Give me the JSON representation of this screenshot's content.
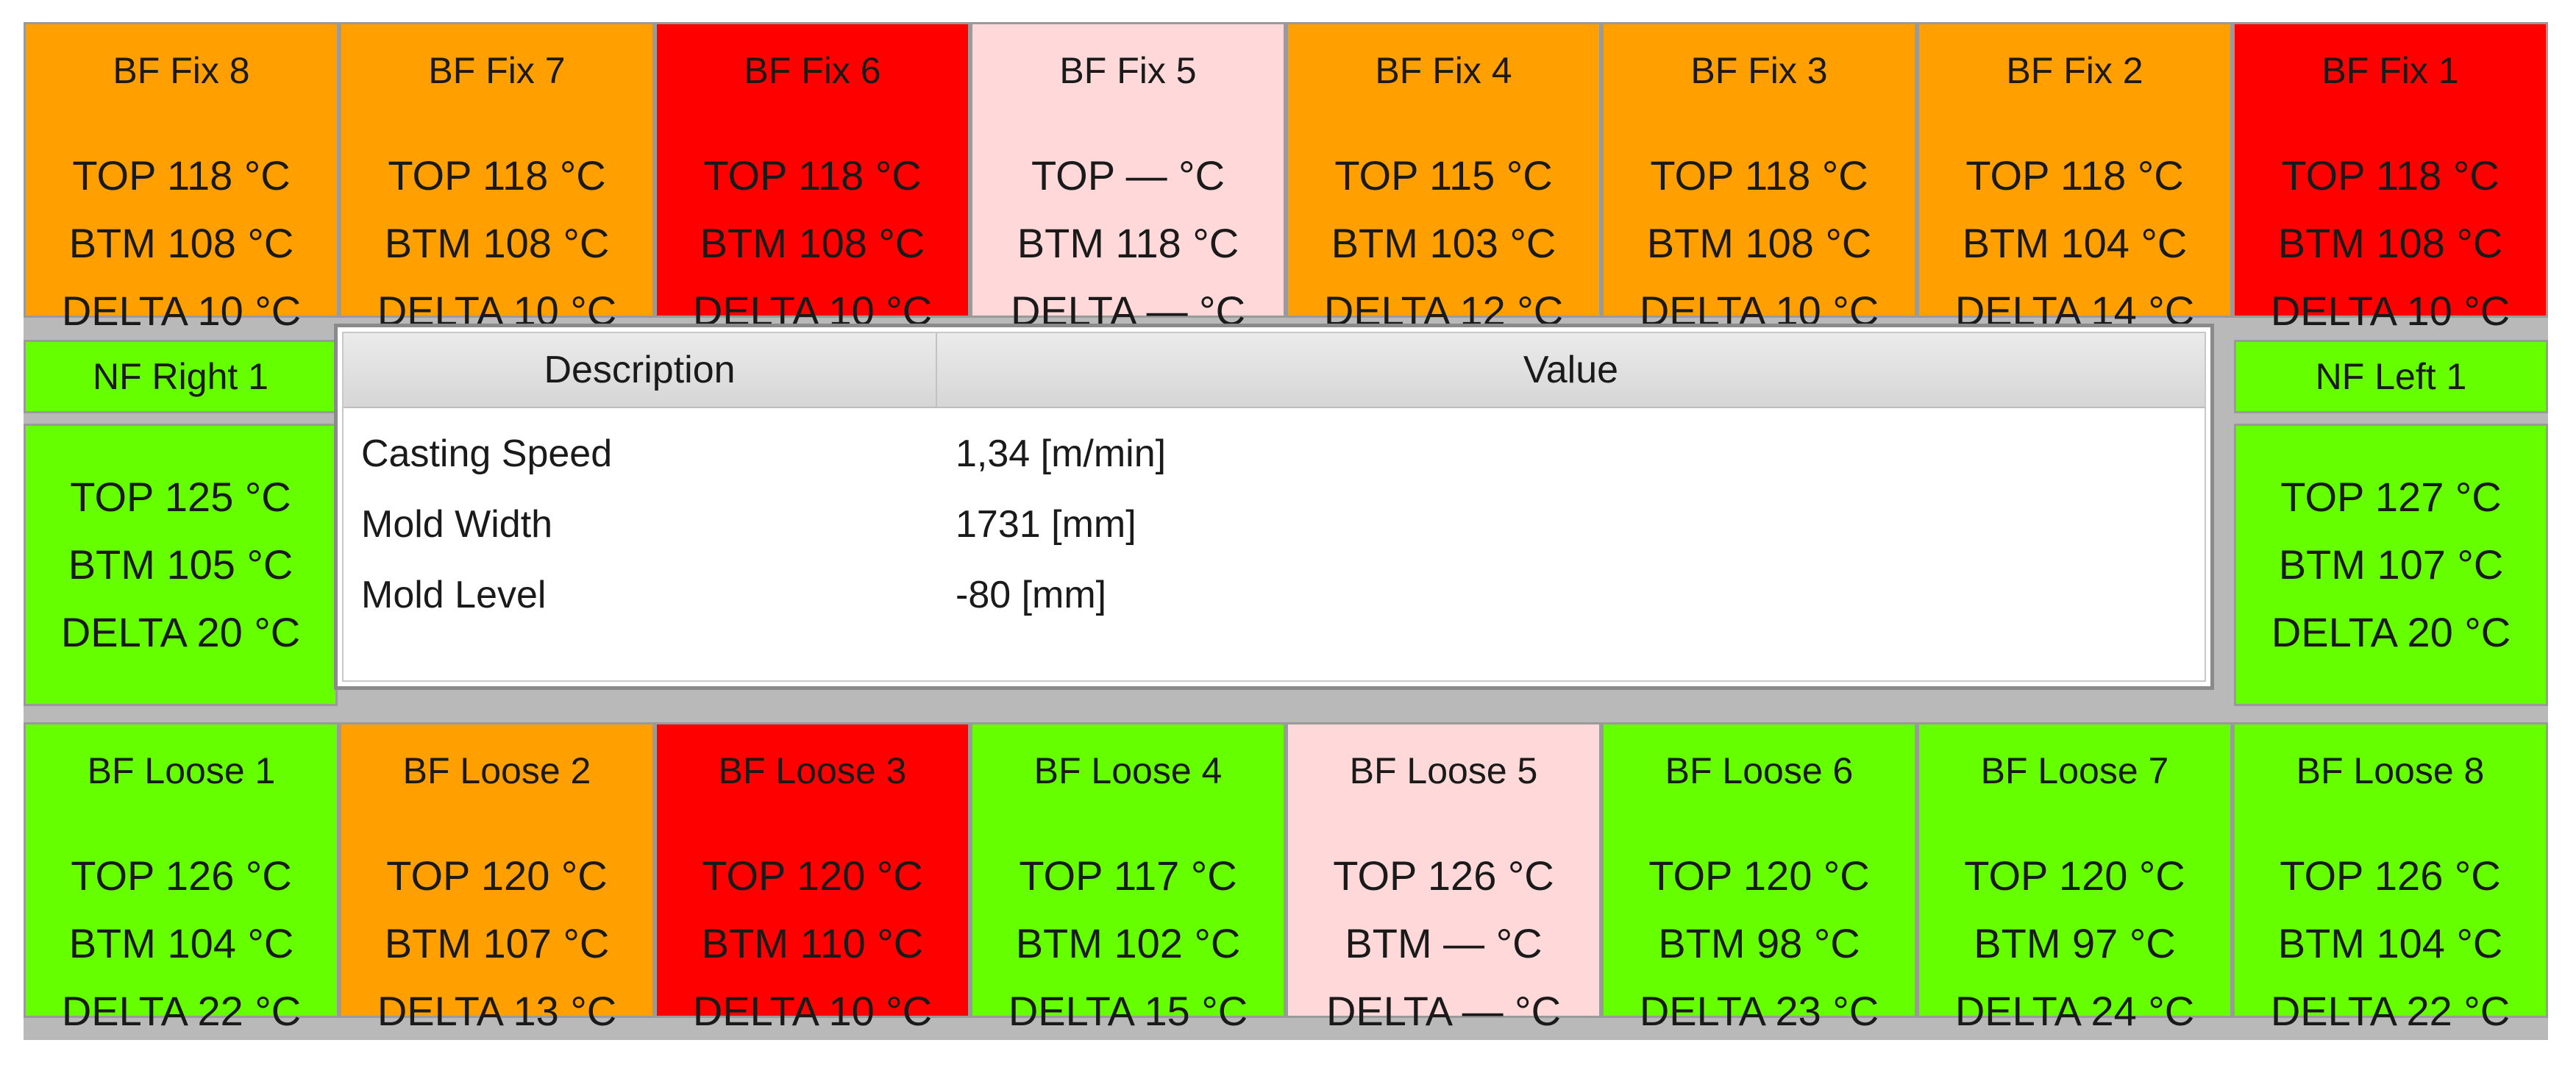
{
  "top_row": [
    {
      "name": "BF Fix 8",
      "top": "TOP 118 °C",
      "btm": "BTM  108 °C",
      "delta": "DELTA 10 °C",
      "color": "#ff9f00"
    },
    {
      "name": "BF Fix 7",
      "top": "TOP 118 °C",
      "btm": "BTM  108 °C",
      "delta": "DELTA 10 °C",
      "color": "#ff9f00"
    },
    {
      "name": "BF Fix 6",
      "top": "TOP 118 °C",
      "btm": "BTM  108 °C",
      "delta": "DELTA 10 °C",
      "color": "#ff0000"
    },
    {
      "name": "BF Fix 5",
      "top": "TOP — °C",
      "btm": "BTM  118 °C",
      "delta": "DELTA — °C",
      "color": "#ffd9d9"
    },
    {
      "name": "BF Fix 4",
      "top": "TOP 115 °C",
      "btm": "BTM  103 °C",
      "delta": "DELTA 12 °C",
      "color": "#ff9f00"
    },
    {
      "name": "BF Fix 3",
      "top": "TOP 118 °C",
      "btm": "BTM  108 °C",
      "delta": "DELTA 10 °C",
      "color": "#ff9f00"
    },
    {
      "name": "BF Fix 2",
      "top": "TOP 118 °C",
      "btm": "BTM  104 °C",
      "delta": "DELTA 14 °C",
      "color": "#ff9f00"
    },
    {
      "name": "BF Fix 1",
      "top": "TOP 118 °C",
      "btm": "BTM  108 °C",
      "delta": "DELTA 10 °C",
      "color": "#ff0000"
    }
  ],
  "bottom_row": [
    {
      "name": "BF Loose 1",
      "top": "TOP 126 °C",
      "btm": "BTM  104 °C",
      "delta": "DELTA 22 °C",
      "color": "#66ff00"
    },
    {
      "name": "BF Loose 2",
      "top": "TOP 120 °C",
      "btm": "BTM  107 °C",
      "delta": "DELTA 13 °C",
      "color": "#ff9f00"
    },
    {
      "name": "BF Loose 3",
      "top": "TOP 120 °C",
      "btm": "BTM  110 °C",
      "delta": "DELTA 10 °C",
      "color": "#ff0000"
    },
    {
      "name": "BF Loose 4",
      "top": "TOP 117 °C",
      "btm": "BTM  102 °C",
      "delta": "DELTA 15 °C",
      "color": "#66ff00"
    },
    {
      "name": "BF Loose 5",
      "top": "TOP 126 °C",
      "btm": "BTM — °C",
      "delta": "DELTA — °C",
      "color": "#ffd9d9"
    },
    {
      "name": "BF Loose 6",
      "top": "TOP 120 °C",
      "btm": "BTM 98 °C",
      "delta": "DELTA 23 °C",
      "color": "#66ff00"
    },
    {
      "name": "BF Loose 7",
      "top": "TOP 120 °C",
      "btm": "BTM 97 °C",
      "delta": "DELTA 24 °C",
      "color": "#66ff00"
    },
    {
      "name": "BF Loose 8",
      "top": "TOP 126 °C",
      "btm": "BTM  104 °C",
      "delta": "DELTA 22 °C",
      "color": "#66ff00"
    }
  ],
  "nf_right": {
    "name": "NF Right 1",
    "top": "TOP 125 °C",
    "btm": "BTM  105 °C",
    "delta": "DELTA 20 °C",
    "color": "#66ff00"
  },
  "nf_left": {
    "name": "NF Left 1",
    "top": "TOP 127 °C",
    "btm": "BTM  107 °C",
    "delta": "DELTA 20 °C",
    "color": "#66ff00"
  },
  "info_table": {
    "headers": {
      "description": "Description",
      "value": "Value"
    },
    "rows": [
      {
        "description": "Casting Speed",
        "value": "1,34 [m/min]"
      },
      {
        "description": "Mold Width",
        "value": "1731 [mm]"
      },
      {
        "description": "Mold Level",
        "value": "-80 [mm]"
      }
    ]
  }
}
